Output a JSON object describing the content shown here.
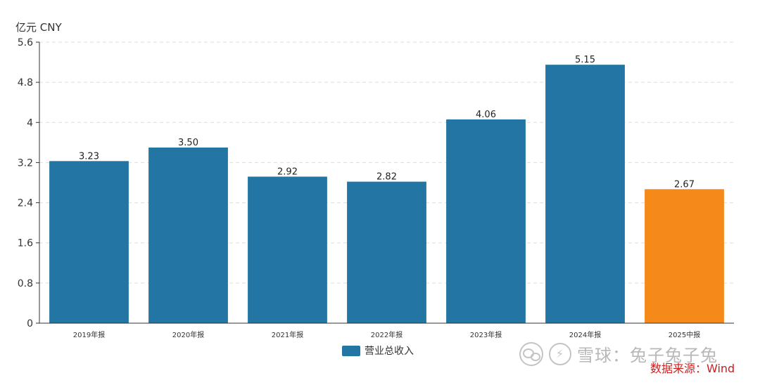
{
  "chart_data": {
    "type": "bar",
    "unit_label": "亿元  CNY",
    "categories": [
      "2019年报",
      "2020年报",
      "2021年报",
      "2022年报",
      "2023年报",
      "2024年报",
      "2025中报"
    ],
    "series": [
      {
        "name": "营业总收入",
        "values": [
          3.23,
          3.5,
          2.92,
          2.82,
          4.06,
          5.15,
          2.67
        ]
      }
    ],
    "data_labels": [
      "3.23",
      "3.50",
      "2.92",
      "2.82",
      "4.06",
      "5.15",
      "2.67"
    ],
    "y_ticks": [
      "0",
      "0.8",
      "1.6",
      "2.4",
      "3.2",
      "4",
      "4.8",
      "5.6"
    ],
    "ylim": [
      0,
      5.6
    ],
    "grid": true,
    "legend_position": "bottom-center",
    "colors": {
      "bar": "#2376a4",
      "highlight_bar": "#f5891a",
      "grid": "#dddddd",
      "axis": "#333333"
    },
    "highlight_index": 6
  },
  "watermark": {
    "text": "雪球：兔子兔子兔"
  },
  "source": {
    "text": "数据来源：Wind"
  }
}
